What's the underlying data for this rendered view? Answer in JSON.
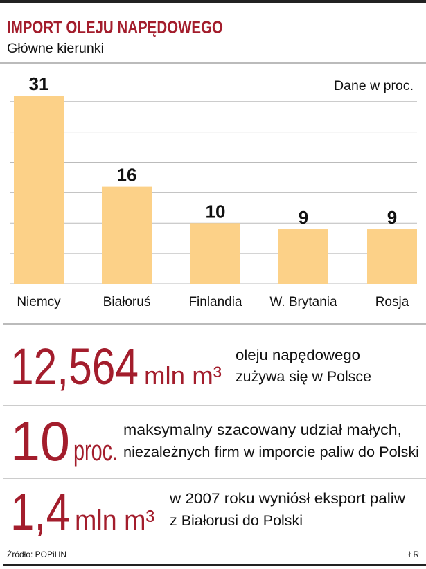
{
  "chart_data": {
    "type": "bar",
    "title": "IMPORT OLEJU NAPĘDOWEGO",
    "subtitle": "Główne kierunki",
    "note": "Dane w proc.",
    "categories": [
      "Niemcy",
      "Białoruś",
      "Finlandia",
      "W. Brytania",
      "Rosja"
    ],
    "values": [
      31,
      16,
      10,
      9,
      9
    ],
    "color": "#fcd188",
    "ylim": [
      0,
      31
    ],
    "yticks": [
      0,
      5,
      10,
      15,
      20,
      25,
      30
    ],
    "grid": true
  },
  "stats": [
    {
      "value": "12,564",
      "unit": "mln m³",
      "text": [
        "oleju napędowego",
        "zużywa się w Polsce"
      ]
    },
    {
      "value": "10",
      "unit": "proc.",
      "text": [
        "maksymalny szacowany udział małych,",
        "niezależnych firm w imporcie paliw do Polski"
      ]
    },
    {
      "value": "1,4",
      "unit": "mln m³",
      "text": [
        "w 2007 roku wyniósł eksport paliw",
        "z Białorusi do Polski"
      ]
    }
  ],
  "footer": {
    "source": "Źródło: POPiHN",
    "author": "ŁR"
  }
}
